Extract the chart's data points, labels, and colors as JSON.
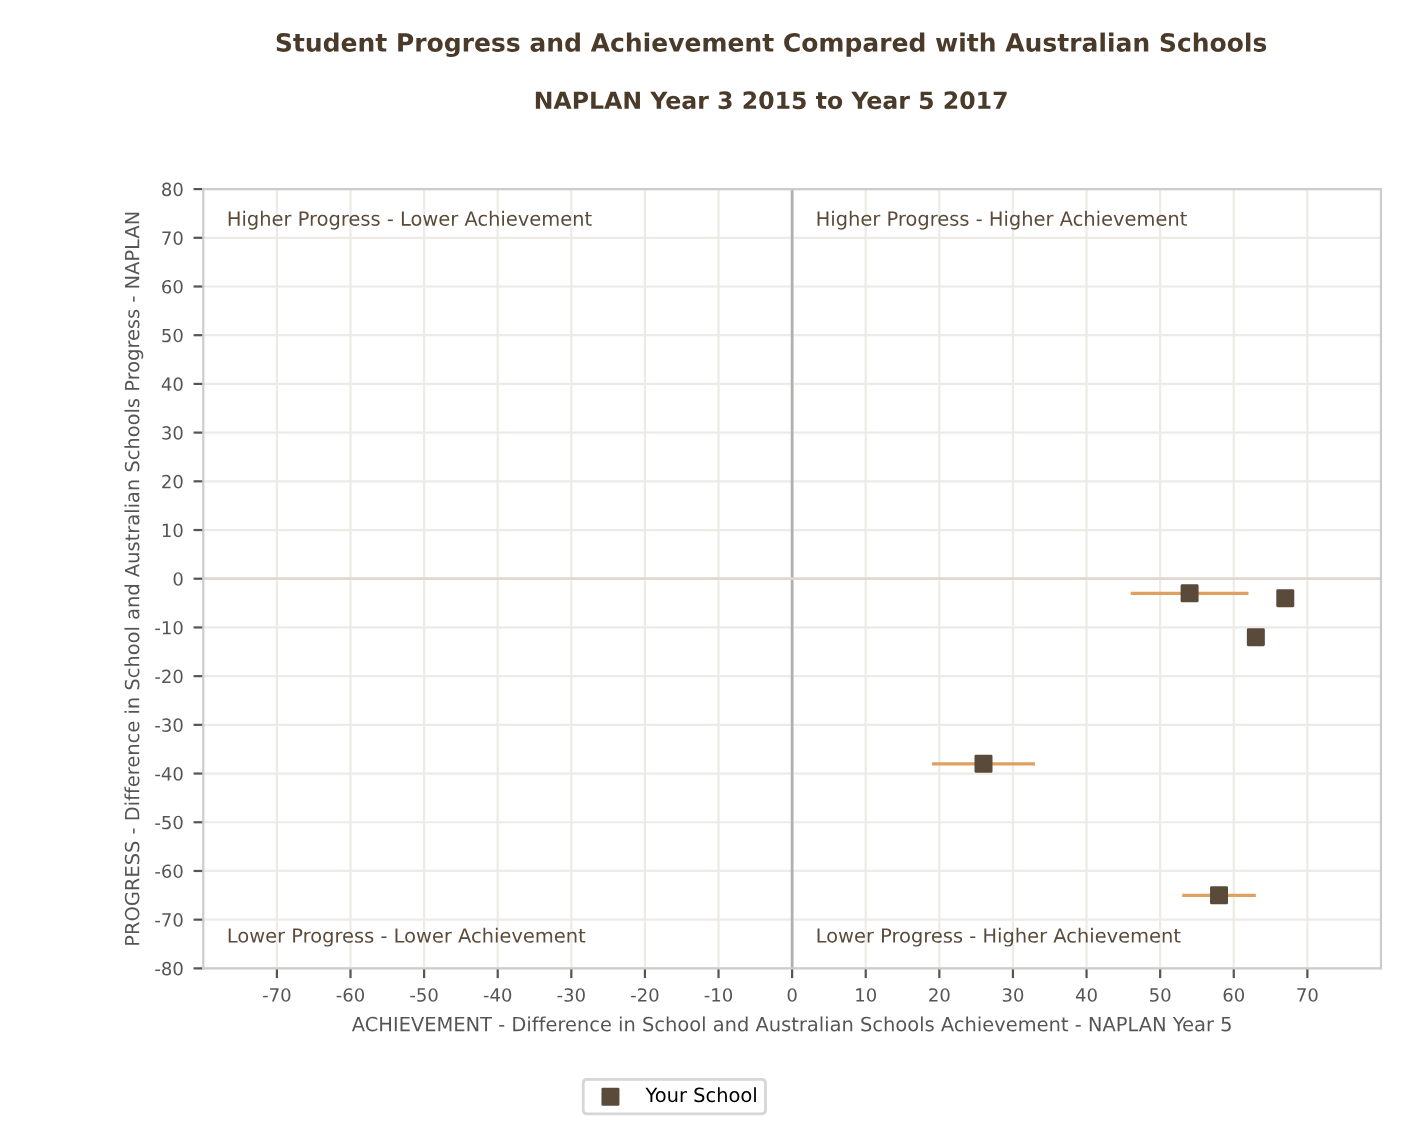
{
  "chart_data": {
    "type": "scatter",
    "title": "Student Progress and Achievement Compared with Australian Schools",
    "subtitle": "NAPLAN Year 3 2015 to Year 5 2017",
    "xlabel": "ACHIEVEMENT - Difference in School and Australian Schools Achievement - NAPLAN Year 5",
    "ylabel": "PROGRESS - Difference in School and Australian Schools Progress - NAPLAN",
    "series": [
      {
        "name": "Your School",
        "color": "#5a4a3a",
        "x": [
          54,
          67,
          63,
          26,
          58
        ],
        "values": [
          -3,
          -4,
          -12,
          -38,
          -65
        ],
        "xerrors": [
          8,
          null,
          null,
          7,
          5
        ]
      }
    ],
    "xlim": [
      -80,
      80
    ],
    "xticks": [
      -70,
      -60,
      -50,
      -40,
      -30,
      -20,
      -10,
      0,
      10,
      20,
      30,
      40,
      50,
      60,
      70
    ],
    "ylim": [
      -80,
      80
    ],
    "yticks": [
      -80,
      -70,
      -60,
      -50,
      -40,
      -30,
      -20,
      -10,
      0,
      10,
      20,
      30,
      40,
      50,
      60,
      70,
      80
    ],
    "ref_lines": [
      {
        "axis": "x",
        "value": 0,
        "color": "#b0b0b0"
      },
      {
        "axis": "y",
        "value": 0,
        "color": "#e0d8d0"
      }
    ],
    "annotations": [
      "Higher Progress - Lower Achievement",
      "Higher Progress - Higher Achievement",
      "Lower Progress - Lower Achievement",
      "Lower Progress - Higher Achievement"
    ],
    "grid": true,
    "legend": "bottom",
    "marker": "square"
  }
}
